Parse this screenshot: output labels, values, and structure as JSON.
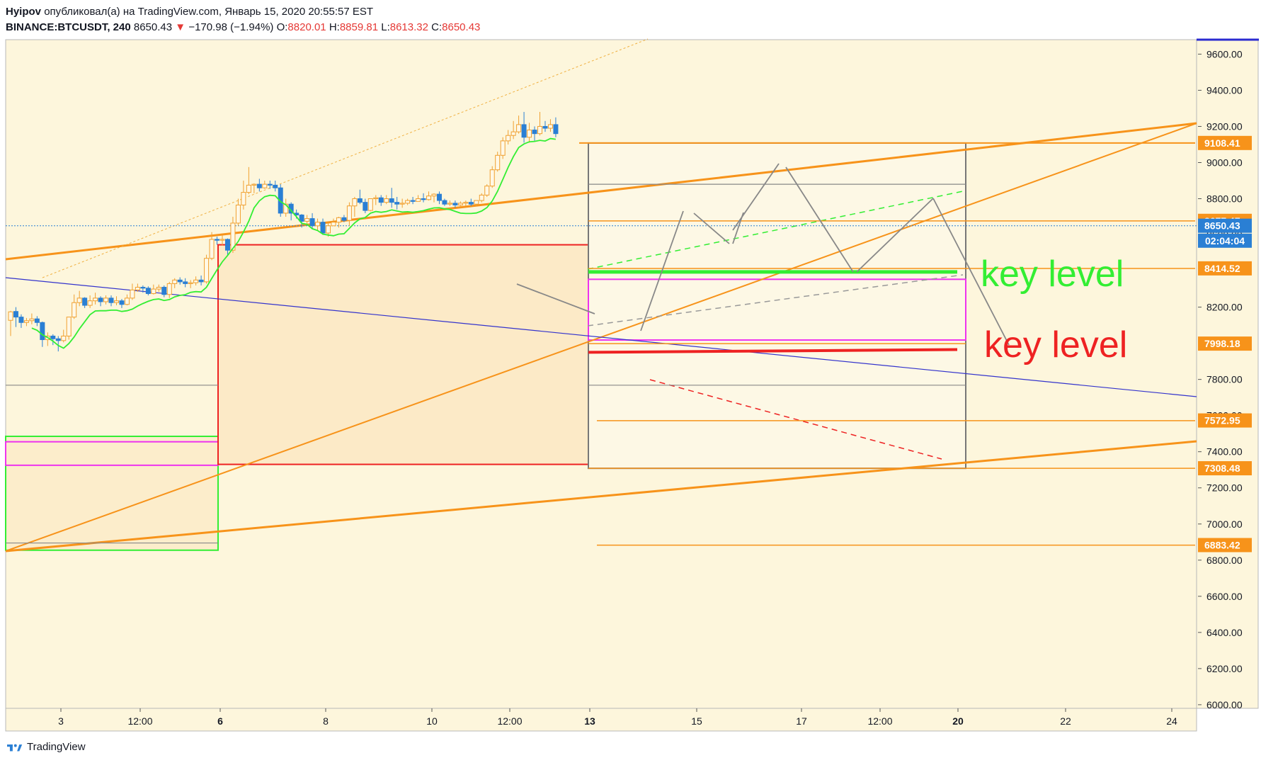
{
  "header": {
    "author": "Hyipov",
    "published": "опубликовал(а) на TradingView.com, Январь 15, 2020 20:55:57 EST",
    "symbol": "BINANCE:BTCUSDT, 240",
    "last": "8650.43",
    "change": "−170.98 (−1.94%)",
    "o_label": "O:",
    "o_value": "8820.01",
    "h_label": "H:",
    "h_value": "8859.81",
    "l_label": "L:",
    "l_value": "8613.32",
    "c_label": "C:",
    "c_value": "8650.43"
  },
  "footer": {
    "brand": "TradingView"
  },
  "colors": {
    "background": "#fdf6dc",
    "up": "#f0a030",
    "down": "#2a7fd4",
    "orange_line": "#f7931a",
    "green": "#33ee33",
    "red": "#ee2222",
    "magenta": "#ee33ee",
    "blue_line": "#3333cc",
    "gray": "#888888"
  },
  "annotations": {
    "key_level_green": "key level",
    "key_level_red": "key level",
    "countdown": "02:04:04"
  },
  "chart_data": {
    "type": "candlestick",
    "x_ticks": [
      "3",
      "12:00",
      "6",
      "8",
      "10",
      "12:00",
      "13",
      "15",
      "17",
      "12:00",
      "20",
      "22",
      "24"
    ],
    "y_ticks": [
      "9600.00",
      "9400.00",
      "9200.00",
      "9000.00",
      "8800.00",
      "8600.00",
      "8400.00",
      "8200.00",
      "8000.00",
      "7800.00",
      "7600.00",
      "7400.00",
      "7200.00",
      "7000.00",
      "6800.00",
      "6600.00",
      "6400.00",
      "6200.00",
      "6000.00"
    ],
    "ylim": [
      5980,
      9680
    ],
    "price_labels": [
      {
        "value": 9108.41,
        "text": "9108.41",
        "color": "#f7931a"
      },
      {
        "value": 8677.47,
        "text": "8677.47",
        "color": "#f7931a"
      },
      {
        "value": 8650.43,
        "text": "8650.43",
        "color": "#2a7fd4"
      },
      {
        "value": 8414.52,
        "text": "8414.52",
        "color": "#f7931a"
      },
      {
        "value": 7998.18,
        "text": "7998.18",
        "color": "#f7931a"
      },
      {
        "value": 7572.95,
        "text": "7572.95",
        "color": "#f7931a"
      },
      {
        "value": 7308.48,
        "text": "7308.48",
        "color": "#f7931a"
      },
      {
        "value": 6883.42,
        "text": "6883.42",
        "color": "#f7931a"
      }
    ],
    "candles": [
      [
        8127,
        8174,
        8180,
        8040
      ],
      [
        8176,
        8145,
        8200,
        8090
      ],
      [
        8145,
        8115,
        8160,
        8085
      ],
      [
        8115,
        8125,
        8140,
        8095
      ],
      [
        8125,
        8135,
        8165,
        8105
      ],
      [
        8135,
        8115,
        8150,
        8095
      ],
      [
        8115,
        8020,
        8120,
        7980
      ],
      [
        8020,
        8040,
        8060,
        7985
      ],
      [
        8040,
        8025,
        8050,
        7990
      ],
      [
        8025,
        8015,
        8040,
        7955
      ],
      [
        8015,
        8040,
        8075,
        8005
      ],
      [
        8040,
        8145,
        8145,
        8020
      ],
      [
        8145,
        8225,
        8270,
        8135
      ],
      [
        8225,
        8250,
        8290,
        8205
      ],
      [
        8250,
        8210,
        8255,
        8195
      ],
      [
        8210,
        8235,
        8265,
        8195
      ],
      [
        8235,
        8250,
        8280,
        8215
      ],
      [
        8250,
        8230,
        8260,
        8205
      ],
      [
        8230,
        8250,
        8265,
        8215
      ],
      [
        8250,
        8225,
        8265,
        8205
      ],
      [
        8225,
        8235,
        8260,
        8210
      ],
      [
        8235,
        8215,
        8245,
        8195
      ],
      [
        8215,
        8250,
        8270,
        8210
      ],
      [
        8250,
        8295,
        8330,
        8240
      ],
      [
        8295,
        8310,
        8330,
        8285
      ],
      [
        8310,
        8305,
        8320,
        8280
      ],
      [
        8305,
        8275,
        8315,
        8265
      ],
      [
        8275,
        8300,
        8325,
        8270
      ],
      [
        8300,
        8310,
        8325,
        8285
      ],
      [
        8310,
        8270,
        8320,
        8255
      ],
      [
        8270,
        8330,
        8340,
        8250
      ],
      [
        8330,
        8350,
        8360,
        8305
      ],
      [
        8350,
        8340,
        8365,
        8325
      ],
      [
        8340,
        8330,
        8360,
        8310
      ],
      [
        8330,
        8335,
        8350,
        8305
      ],
      [
        8335,
        8350,
        8370,
        8320
      ],
      [
        8350,
        8340,
        8375,
        8320
      ],
      [
        8340,
        8470,
        8490,
        8330
      ],
      [
        8470,
        8575,
        8615,
        8460
      ],
      [
        8575,
        8570,
        8590,
        8545
      ],
      [
        8570,
        8575,
        8600,
        8540
      ],
      [
        8575,
        8515,
        8580,
        8490
      ],
      [
        8515,
        8665,
        8700,
        8500
      ],
      [
        8665,
        8765,
        8800,
        8650
      ],
      [
        8765,
        8835,
        8900,
        8740
      ],
      [
        8835,
        8875,
        8975,
        8825
      ],
      [
        8875,
        8880,
        8885,
        8830
      ],
      [
        8880,
        8860,
        8910,
        8840
      ],
      [
        8860,
        8880,
        8900,
        8855
      ],
      [
        8880,
        8875,
        8900,
        8855
      ],
      [
        8875,
        8860,
        8900,
        8840
      ],
      [
        8860,
        8720,
        8880,
        8700
      ],
      [
        8720,
        8770,
        8800,
        8700
      ],
      [
        8770,
        8720,
        8780,
        8680
      ],
      [
        8720,
        8710,
        8740,
        8690
      ],
      [
        8710,
        8675,
        8715,
        8640
      ],
      [
        8675,
        8690,
        8710,
        8660
      ],
      [
        8690,
        8650,
        8720,
        8630
      ],
      [
        8650,
        8670,
        8690,
        8625
      ],
      [
        8670,
        8610,
        8690,
        8600
      ],
      [
        8610,
        8650,
        8665,
        8590
      ],
      [
        8650,
        8670,
        8690,
        8650
      ],
      [
        8670,
        8695,
        8700,
        8640
      ],
      [
        8695,
        8680,
        8710,
        8670
      ],
      [
        8680,
        8760,
        8780,
        8650
      ],
      [
        8760,
        8800,
        8810,
        8700
      ],
      [
        8800,
        8780,
        8850,
        8770
      ],
      [
        8780,
        8735,
        8800,
        8720
      ],
      [
        8735,
        8800,
        8800,
        8730
      ],
      [
        8800,
        8805,
        8820,
        8765
      ],
      [
        8805,
        8780,
        8820,
        8760
      ],
      [
        8780,
        8800,
        8820,
        8770
      ],
      [
        8800,
        8780,
        8860,
        8750
      ],
      [
        8780,
        8770,
        8810,
        8740
      ],
      [
        8770,
        8775,
        8800,
        8750
      ],
      [
        8775,
        8790,
        8800,
        8765
      ],
      [
        8790,
        8785,
        8810,
        8770
      ],
      [
        8785,
        8800,
        8820,
        8785
      ],
      [
        8800,
        8795,
        8830,
        8780
      ],
      [
        8795,
        8815,
        8840,
        8790
      ],
      [
        8815,
        8825,
        8830,
        8780
      ],
      [
        8825,
        8790,
        8840,
        8770
      ],
      [
        8790,
        8770,
        8800,
        8760
      ],
      [
        8770,
        8775,
        8790,
        8760
      ],
      [
        8775,
        8765,
        8790,
        8750
      ],
      [
        8765,
        8775,
        8785,
        8760
      ],
      [
        8775,
        8780,
        8790,
        8760
      ],
      [
        8780,
        8770,
        8800,
        8760
      ],
      [
        8770,
        8790,
        8790,
        8760
      ],
      [
        8790,
        8820,
        8830,
        8780
      ],
      [
        8820,
        8870,
        8880,
        8810
      ],
      [
        8870,
        8960,
        8980,
        8860
      ],
      [
        8960,
        9040,
        9060,
        8950
      ],
      [
        9040,
        9120,
        9140,
        9020
      ],
      [
        9120,
        9150,
        9180,
        9100
      ],
      [
        9150,
        9170,
        9230,
        9130
      ],
      [
        9170,
        9210,
        9260,
        9160
      ],
      [
        9210,
        9140,
        9280,
        9110
      ],
      [
        9140,
        9180,
        9220,
        9110
      ],
      [
        9180,
        9160,
        9200,
        9120
      ],
      [
        9160,
        9200,
        9280,
        9150
      ],
      [
        9200,
        9190,
        9230,
        9170
      ],
      [
        9190,
        9210,
        9240,
        9170
      ],
      [
        9210,
        9160,
        9250,
        9140
      ]
    ],
    "note": "candles are [open, close, high, low] read approximately off the 240-minute chart"
  }
}
